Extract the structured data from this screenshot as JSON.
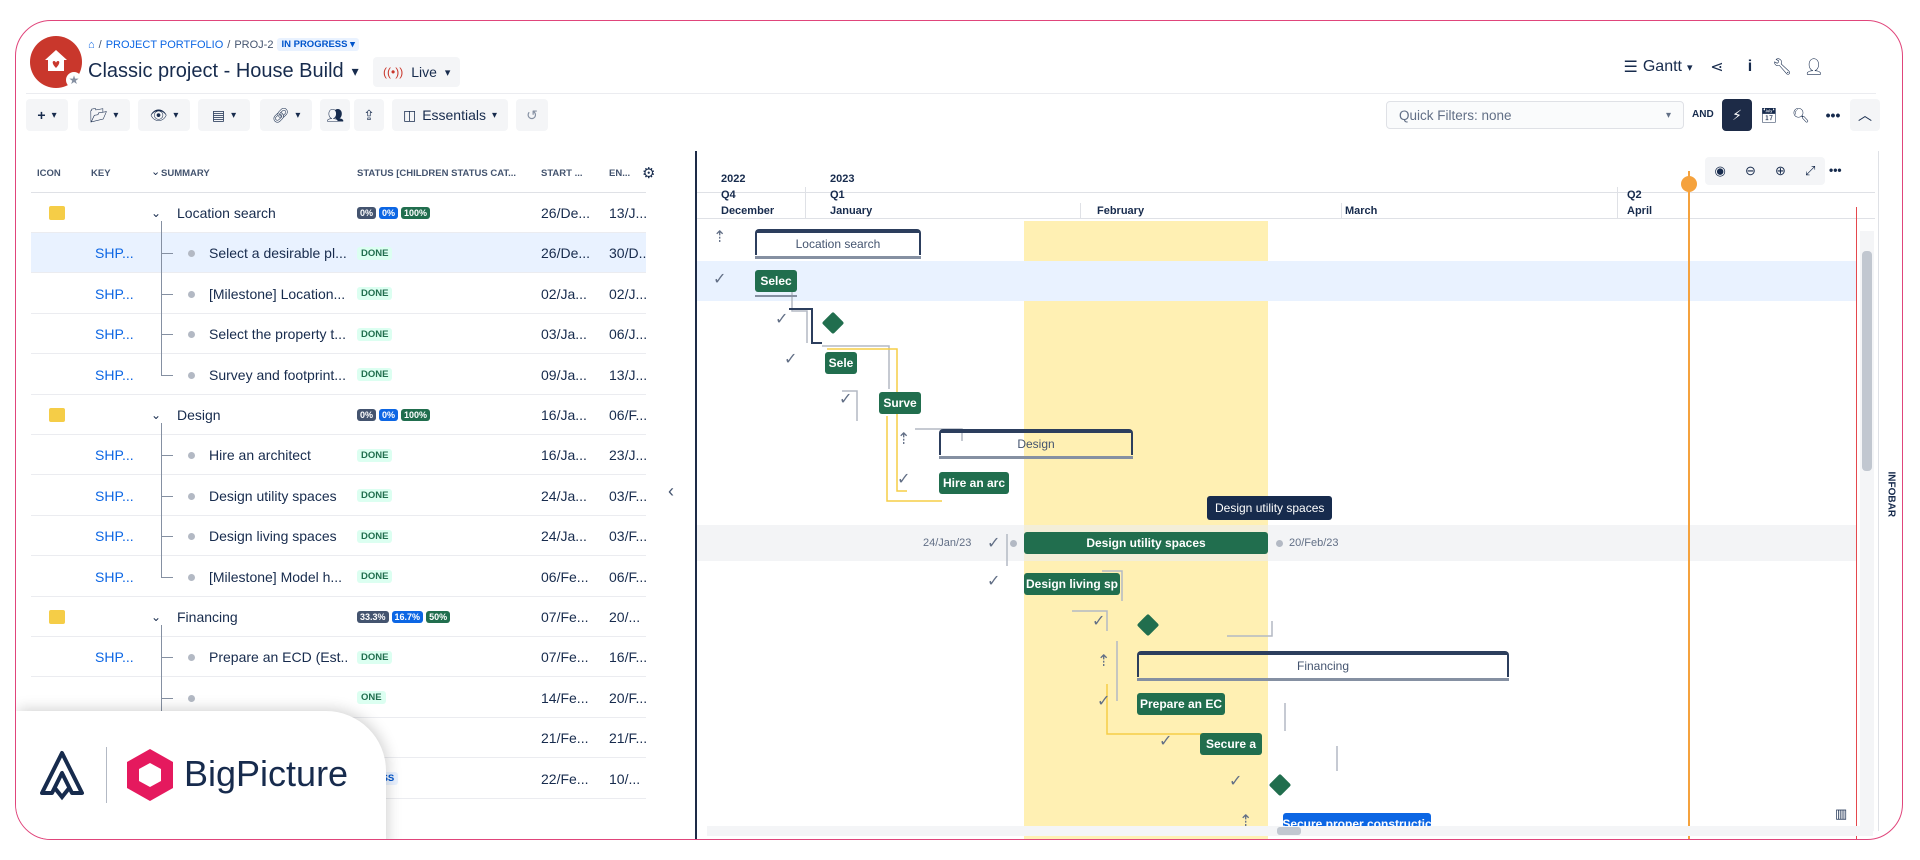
{
  "breadcrumb": {
    "portfolio": "PROJECT PORTFOLIO",
    "proj": "PROJ-2",
    "status": "IN PROGRESS"
  },
  "title": "Classic project - House Build",
  "live_label": "Live",
  "view_label": "Gantt",
  "toolbar": {
    "essentials": "Essentials",
    "quick_filters": "Quick Filters: none",
    "and": "AND"
  },
  "columns": {
    "icon": "ICON",
    "key": "KEY",
    "summary": "SUMMARY",
    "status": "STATUS [CHILDREN STATUS CAT...",
    "start": "START ...",
    "end": "EN..."
  },
  "rows": [
    {
      "key": "",
      "summary": "Location search",
      "status": "",
      "progress": [
        "0%",
        "0%",
        "100%"
      ],
      "start": "26/De...",
      "end": "13/J..."
    },
    {
      "key": "SHP...",
      "summary": "Select a desirable pl...",
      "status": "DONE",
      "start": "26/De...",
      "end": "30/D..."
    },
    {
      "key": "SHP...",
      "summary": "[Milestone] Location...",
      "status": "DONE",
      "start": "02/Ja...",
      "end": "02/J..."
    },
    {
      "key": "SHP...",
      "summary": "Select the property t...",
      "status": "DONE",
      "start": "03/Ja...",
      "end": "06/J..."
    },
    {
      "key": "SHP...",
      "summary": "Survey and footprint...",
      "status": "DONE",
      "start": "09/Ja...",
      "end": "13/J..."
    },
    {
      "key": "",
      "summary": "Design",
      "status": "",
      "progress": [
        "0%",
        "0%",
        "100%"
      ],
      "start": "16/Ja...",
      "end": "06/F..."
    },
    {
      "key": "SHP...",
      "summary": "Hire an architect",
      "status": "DONE",
      "start": "16/Ja...",
      "end": "23/J..."
    },
    {
      "key": "SHP...",
      "summary": "Design utility spaces",
      "status": "DONE",
      "start": "24/Ja...",
      "end": "03/F..."
    },
    {
      "key": "SHP...",
      "summary": "Design living spaces",
      "status": "DONE",
      "start": "24/Ja...",
      "end": "03/F..."
    },
    {
      "key": "SHP...",
      "summary": "[Milestone] Model h...",
      "status": "DONE",
      "start": "06/Fe...",
      "end": "06/F..."
    },
    {
      "key": "",
      "summary": "Financing",
      "status": "",
      "progress": [
        "33.3%",
        "16.7%",
        "50%"
      ],
      "start": "07/Fe...",
      "end": "20/..."
    },
    {
      "key": "SHP...",
      "summary": "Prepare an ECD (Est...",
      "status": "DONE",
      "start": "07/Fe...",
      "end": "16/F..."
    },
    {
      "key": "",
      "summary": "",
      "status": "ONE",
      "start": "14/Fe...",
      "end": "20/F..."
    },
    {
      "key": "",
      "summary": "",
      "status": "",
      "start": "21/Fe...",
      "end": "21/F..."
    },
    {
      "key": "",
      "summary": "",
      "status": "GRESS",
      "start": "22/Fe...",
      "end": "10/..."
    }
  ],
  "timeline": {
    "years": [
      "2022",
      "2023"
    ],
    "quarters": [
      "Q4",
      "Q1",
      "Q2"
    ],
    "months": [
      "December",
      "January",
      "February",
      "March",
      "April"
    ]
  },
  "gantt": {
    "epic_location": "Location search",
    "bar_select": "Selec",
    "bar_sel2": "Sele",
    "bar_survey": "Surve",
    "epic_design": "Design",
    "bar_hire": "Hire an arc",
    "bar_utility": "Design utility spaces",
    "bar_living": "Design living sp",
    "epic_financing": "Financing",
    "bar_prepare": "Prepare an EC",
    "bar_secure": "Secure a",
    "bar_construct": "Secure proper constructic",
    "date_start": "24/Jan/23",
    "date_end": "20/Feb/23",
    "tooltip": "Design utility spaces"
  },
  "infobar": "INFOBAR",
  "brand": "BigPicture",
  "colors": {
    "accent": "#c9372c",
    "bar_green": "#216e4e",
    "highlight": "#fff0b3",
    "today": "#f5a23d",
    "frame": "#e0457b"
  }
}
